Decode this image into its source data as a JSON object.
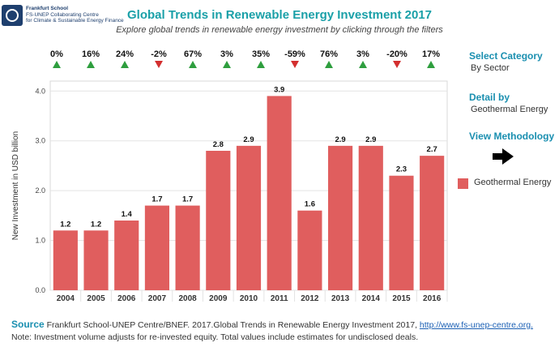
{
  "header": {
    "logo_line1": "Frankfurt School",
    "logo_line2": "FS-UNEP Collaborating Centre",
    "logo_line3": "for Climate & Sustainable Energy Finance",
    "title": "Global Trends in Renewable Energy Investment 2017",
    "subtitle": "Explore global trends in renewable energy investment by clicking through the filters"
  },
  "side_panel": {
    "category_label": "Select Category",
    "category_value": "By Sector",
    "detail_label": "Detail by",
    "detail_value": "Geothermal Energy",
    "methodology_label": "View Methodology"
  },
  "colors": {
    "bar": "#e05e5e",
    "up": "#2e9e3e",
    "down": "#d32f2f",
    "accent": "#1a8fb0"
  },
  "chart_data": {
    "type": "bar",
    "categories": [
      "2004",
      "2005",
      "2006",
      "2007",
      "2008",
      "2009",
      "2010",
      "2011",
      "2012",
      "2013",
      "2014",
      "2015",
      "2016"
    ],
    "series": [
      {
        "name": "Geothermal Energy",
        "values": [
          1.2,
          1.2,
          1.4,
          1.7,
          1.7,
          2.8,
          2.9,
          3.9,
          1.6,
          2.9,
          2.9,
          2.3,
          2.7
        ]
      }
    ],
    "data_labels": [
      "1.2",
      "1.2",
      "1.4",
      "1.7",
      "1.7",
      "2.8",
      "2.9",
      "3.9",
      "1.6",
      "2.9",
      "2.9",
      "2.3",
      "2.7"
    ],
    "growth": [
      "0%",
      "16%",
      "24%",
      "-2%",
      "67%",
      "3%",
      "35%",
      "-59%",
      "76%",
      "3%",
      "-20%",
      "17%"
    ],
    "growth_direction": [
      "up",
      "up",
      "up",
      "down",
      "up",
      "up",
      "up",
      "down",
      "up",
      "up",
      "down",
      "up"
    ],
    "ylabel": "New Investment in USD billion",
    "yticks": [
      "0.0",
      "1.0",
      "2.0",
      "3.0",
      "4.0"
    ],
    "ylim": [
      0,
      4.2
    ],
    "grid": true,
    "legend": "right"
  },
  "footer": {
    "source_head": "Source",
    "source_text": " Frankfurt School-UNEP Centre/BNEF. 2017.Global Trends in Renewable Energy Investment 2017, ",
    "source_link": "http://www.fs-unep-centre.org.",
    "note": "Note: Investment volume adjusts for re-invested equity. Total values include estimates for undisclosed deals."
  }
}
